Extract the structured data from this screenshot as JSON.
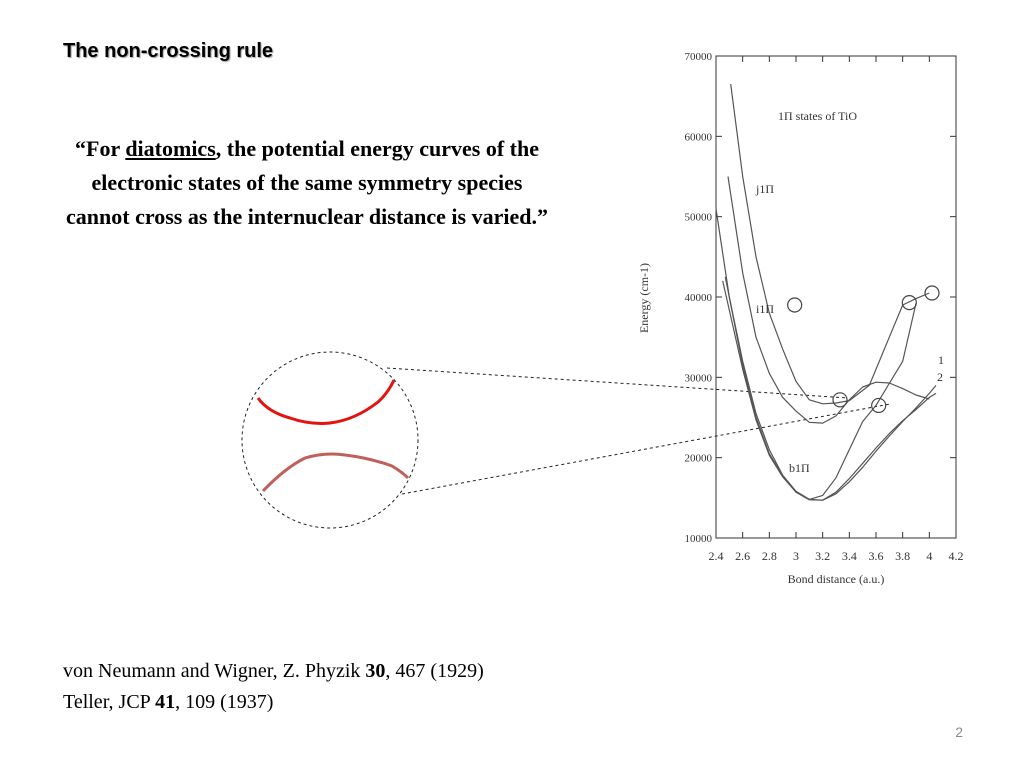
{
  "slide": {
    "title": "The non-crossing rule",
    "quote": {
      "open": "“For ",
      "term": "diatomics",
      "rest": ", the potential energy curves of the electronic states of the same symmetry species cannot cross as the internuclear distance is varied.”"
    },
    "references": [
      {
        "prefix": "von Neumann and Wigner, Z. Phyzik ",
        "volume": "30",
        "suffix": ", 467 (1929)"
      },
      {
        "prefix": "Teller, JCP ",
        "volume": "41",
        "suffix": ", 109 (1937)"
      }
    ],
    "page_number": "2"
  },
  "chart_data": {
    "type": "line",
    "title": "1Π states of TiO",
    "xlabel": "Bond distance (a.u.)",
    "ylabel": "Energy (cm-1)",
    "xlim": [
      2.4,
      4.2
    ],
    "ylim": [
      10000,
      70000
    ],
    "x_ticks": [
      "2.4",
      "2.6",
      "2.8",
      "3",
      "3.2",
      "3.4",
      "3.6",
      "3.8",
      "4",
      "4.2"
    ],
    "y_ticks": [
      "10000",
      "20000",
      "30000",
      "40000",
      "50000",
      "60000",
      "70000"
    ],
    "state_labels": [
      {
        "text": "j1Π",
        "x": 2.55,
        "y": 54500
      },
      {
        "text": "i1Π",
        "x": 2.55,
        "y": 39000
      },
      {
        "text": "b1Π",
        "x": 3.05,
        "y": 19000
      }
    ],
    "curve_end_labels": [
      "1",
      "2"
    ],
    "series": [
      {
        "x": [
          2.51,
          2.6,
          2.7,
          2.8,
          2.9,
          3.0,
          3.1,
          3.2,
          3.3,
          3.4,
          3.55,
          3.7,
          3.8,
          3.9,
          4.0
        ],
        "y": [
          66500,
          55000,
          45000,
          38000,
          33500,
          29500,
          27200,
          26700,
          26800,
          27100,
          29000,
          35000,
          39000,
          39800,
          40500
        ]
      },
      {
        "x": [
          2.49,
          2.6,
          2.7,
          2.8,
          2.9,
          3.0,
          3.1,
          3.2,
          3.3,
          3.4,
          3.5,
          3.6,
          3.7,
          3.8,
          3.9,
          4.0
        ],
        "y": [
          55000,
          43000,
          35000,
          30500,
          27500,
          25800,
          24400,
          24300,
          25200,
          27200,
          28800,
          29400,
          29300,
          28600,
          27800,
          27300
        ]
      },
      {
        "x": [
          2.4,
          2.5,
          2.6,
          2.7,
          2.8,
          2.9,
          3.0,
          3.1,
          3.2,
          3.3,
          3.4,
          3.5,
          3.6,
          3.8,
          3.9
        ],
        "y": [
          51000,
          40000,
          32000,
          25500,
          21000,
          17800,
          15800,
          14800,
          15300,
          17500,
          21000,
          24500,
          26500,
          32000,
          39200
        ]
      },
      {
        "x": [
          2.47,
          2.6,
          2.7,
          2.8,
          2.9,
          3.0,
          3.1,
          3.2,
          3.3,
          3.4,
          3.5,
          3.6,
          3.7,
          3.8,
          3.9,
          4.0,
          4.05
        ],
        "y": [
          42500,
          31500,
          25000,
          20500,
          17700,
          15800,
          14800,
          14700,
          15700,
          17400,
          19300,
          21200,
          23000,
          24600,
          26000,
          27500,
          28000
        ]
      },
      {
        "x": [
          2.45,
          2.6,
          2.7,
          2.8,
          2.9,
          3.0,
          3.1,
          3.2,
          3.3,
          3.4,
          3.5,
          3.6,
          3.7,
          3.8,
          3.9,
          4.0,
          4.05
        ],
        "y": [
          42000,
          31000,
          24700,
          20300,
          17600,
          15700,
          14750,
          14700,
          15500,
          17000,
          18800,
          20800,
          22700,
          24500,
          26200,
          28000,
          29000
        ]
      }
    ],
    "avoided_crossing_markers": [
      {
        "x": 2.99,
        "y": 39000
      },
      {
        "x": 3.33,
        "y": 27200
      },
      {
        "x": 3.62,
        "y": 26500
      },
      {
        "x": 3.85,
        "y": 39300
      },
      {
        "x": 4.02,
        "y": 40500
      }
    ],
    "zoom_inset": {
      "upper_curve_color": "#e3140f",
      "lower_curve_color": "#c0605a"
    }
  }
}
